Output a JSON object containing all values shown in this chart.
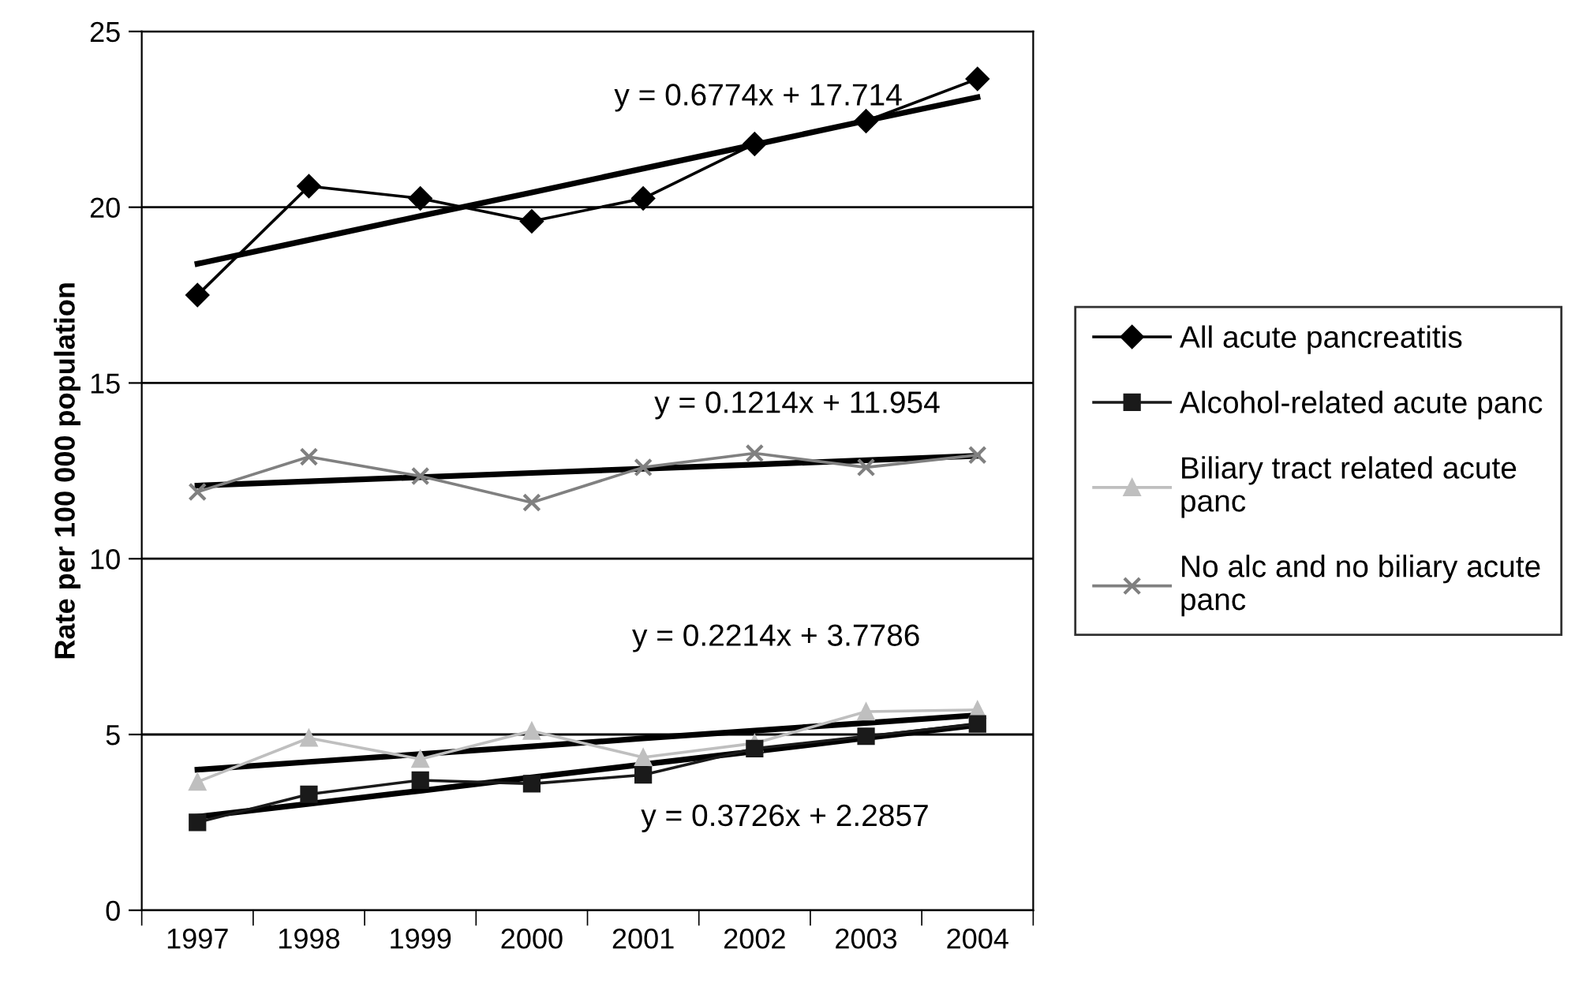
{
  "chart_data": {
    "type": "line",
    "ylabel": "Rate per 100 000 population",
    "categories": [
      "1997",
      "1998",
      "1999",
      "2000",
      "2001",
      "2002",
      "2003",
      "2004"
    ],
    "series": [
      {
        "name": "All acute pancreatitis",
        "color": "#000000",
        "marker": "diamond",
        "values": [
          17.5,
          20.6,
          20.25,
          19.6,
          20.25,
          21.8,
          22.45,
          23.65
        ]
      },
      {
        "name": "Alcohol-related acute panc",
        "color": "#1a1a1a",
        "marker": "square",
        "values": [
          2.5,
          3.3,
          3.7,
          3.6,
          3.85,
          4.6,
          4.95,
          5.3
        ]
      },
      {
        "name": "Biliary tract related acute\npanc",
        "color": "#bfbfbf",
        "marker": "triangle",
        "values": [
          3.65,
          4.9,
          4.3,
          5.1,
          4.35,
          4.75,
          5.65,
          5.7
        ]
      },
      {
        "name": "No alc and no biliary acute\npanc",
        "color": "#808080",
        "marker": "cross",
        "values": [
          11.9,
          12.9,
          12.35,
          11.6,
          12.6,
          13.0,
          12.6,
          12.95
        ]
      },
      {
        "type": "line",
        "color": "#000000",
        "marker": "none",
        "values": [
          18.39,
          19.07,
          19.75,
          20.42,
          21.1,
          21.78,
          22.46,
          23.13
        ]
      },
      {
        "type": "line",
        "color": "#000000",
        "marker": "none",
        "values": [
          12.08,
          12.2,
          12.32,
          12.44,
          12.56,
          12.68,
          12.8,
          12.93
        ]
      },
      {
        "type": "line",
        "color": "#000000",
        "marker": "none",
        "values": [
          4.0,
          4.22,
          4.44,
          4.66,
          4.89,
          5.11,
          5.33,
          5.55
        ]
      },
      {
        "type": "line",
        "color": "#000000",
        "marker": "none",
        "values": [
          2.66,
          3.03,
          3.4,
          3.78,
          4.15,
          4.52,
          4.9,
          5.27
        ]
      }
    ],
    "ylim": [
      0,
      25
    ],
    "yticks": [
      0,
      5,
      10,
      15,
      20,
      25
    ],
    "grid": "y",
    "legend": "right",
    "annotations": [
      "y = 0.6774x + 17.714",
      "y = 0.1214x + 11.954",
      "y = 0.2214x + 3.7786",
      "y = 0.3726x + 2.2857"
    ]
  }
}
